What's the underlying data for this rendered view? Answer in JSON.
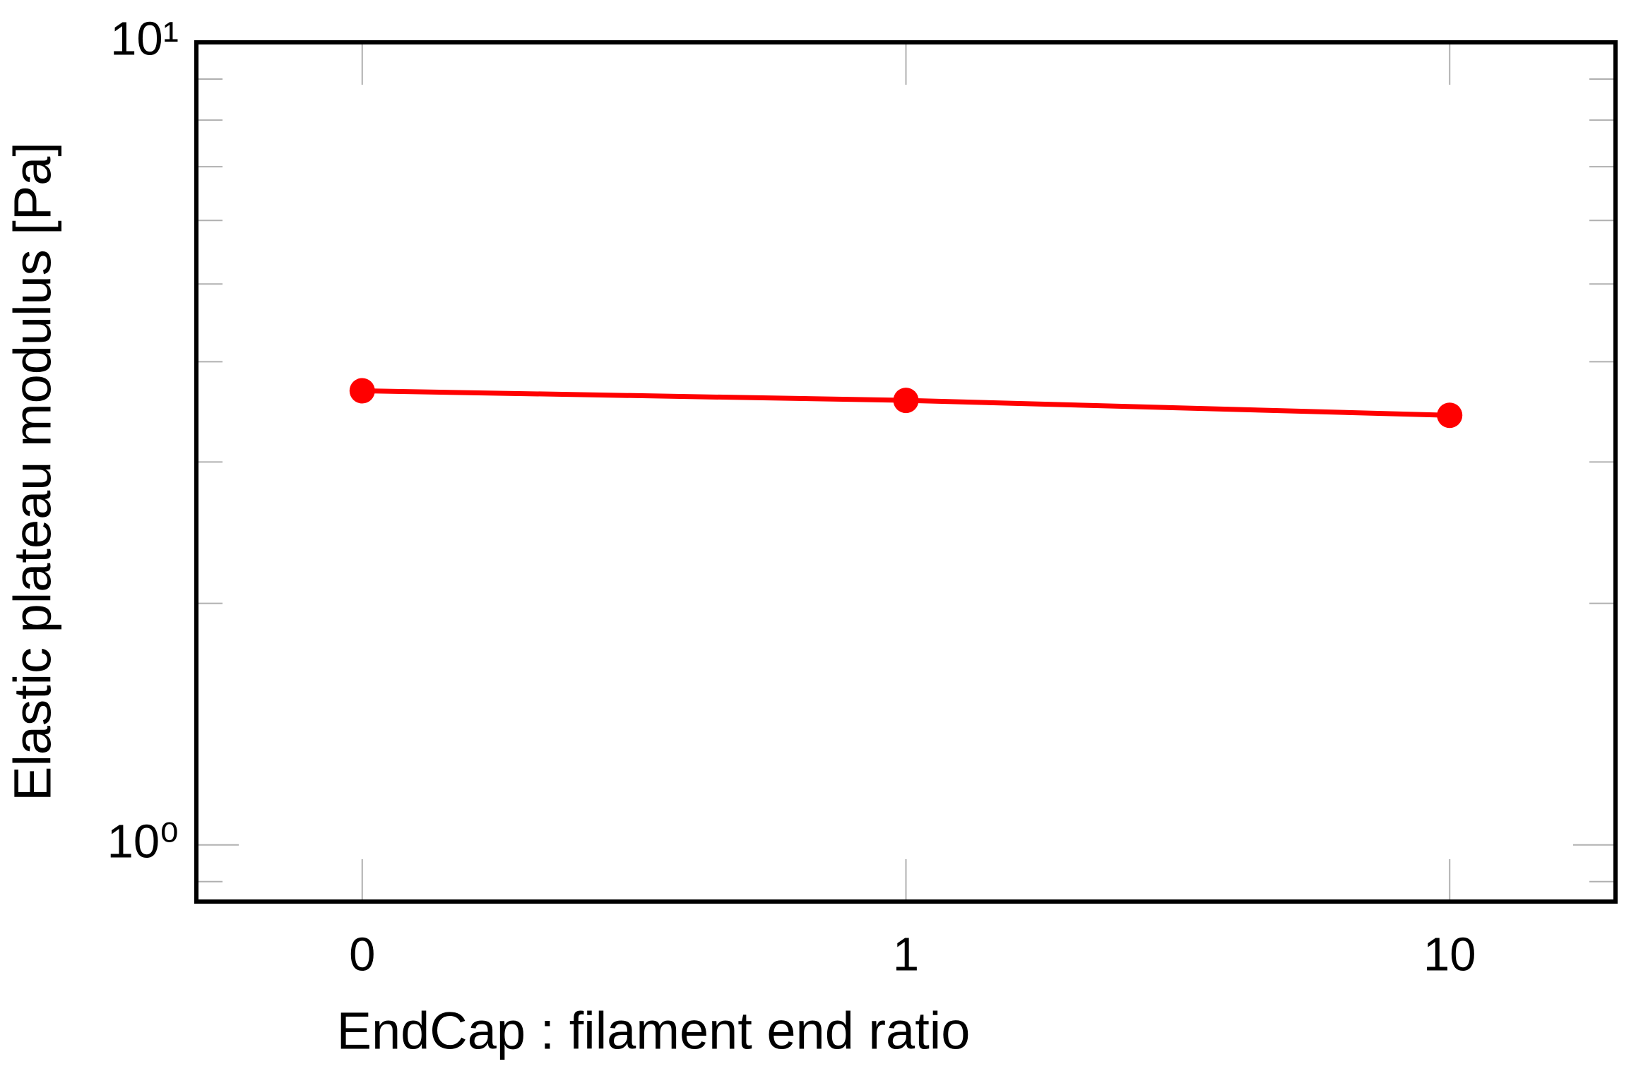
{
  "chart_data": {
    "type": "line",
    "x_label": "EndCap : filament end ratio",
    "y_label": "Elastic plateau modulus [Pa]",
    "categories": [
      "0",
      "1",
      "10"
    ],
    "series": [
      {
        "color": "#ff0000",
        "values": [
          3.68,
          3.58,
          3.43
        ]
      }
    ],
    "ylim": [
      0.85,
      10
    ],
    "yscale": "log",
    "yticks": [
      {
        "value": 1,
        "label": "10⁰"
      },
      {
        "value": 10,
        "label": "10¹"
      }
    ],
    "yminorticks": [
      0.9,
      2,
      3,
      4,
      5,
      6,
      7,
      8,
      9
    ]
  }
}
